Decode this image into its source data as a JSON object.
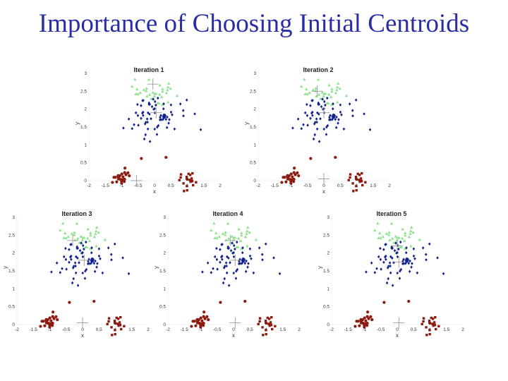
{
  "slide": {
    "title": "Importance of Choosing Initial Centroids"
  },
  "colors": {
    "title": "#2a2ea6",
    "cluster_green": "#8fe38f",
    "cluster_blue": "#13238c",
    "cluster_red": "#8b1a10",
    "centroid": "#999999"
  },
  "chart_data": [
    {
      "type": "scatter",
      "title": "Iteration 1",
      "xlabel": "x",
      "ylabel": "y",
      "xlim": [
        -2,
        2
      ],
      "ylim": [
        0,
        3
      ],
      "xticks": [
        "-2",
        "-1.5",
        "-1",
        "-0.5",
        "0",
        "0.5",
        "1",
        "1.5",
        "2"
      ],
      "yticks": [
        "0",
        "0.5",
        "1",
        "1.5",
        "2",
        "2.5",
        "3"
      ],
      "centroids": [
        [
          -0.05,
          2.7
        ],
        [
          0.05,
          1.9
        ],
        [
          -0.55,
          0.0
        ]
      ]
    },
    {
      "type": "scatter",
      "title": "Iteration 2",
      "xlabel": "x",
      "ylabel": "y",
      "xlim": [
        -2,
        2
      ],
      "ylim": [
        0,
        3
      ],
      "xticks": [
        "-2",
        "-1.5",
        "-1",
        "-0.5",
        "0",
        "0.5",
        "1",
        "1.5",
        "2"
      ],
      "yticks": [
        "0",
        "0.5",
        "1",
        "1.5",
        "2",
        "2.5",
        "3"
      ],
      "centroids": [
        [
          -0.2,
          2.5
        ],
        [
          0.0,
          1.9
        ],
        [
          0.0,
          0.05
        ]
      ]
    },
    {
      "type": "scatter",
      "title": "Iteration 3",
      "xlabel": "x",
      "ylabel": "y",
      "xlim": [
        -2,
        2
      ],
      "ylim": [
        0,
        3
      ],
      "xticks": [
        "-2",
        "-1.5",
        "-1",
        "-0.5",
        "0",
        "0.5",
        "1",
        "1.5",
        "2"
      ],
      "yticks": [
        "0",
        "0.5",
        "1",
        "1.5",
        "2",
        "2.5",
        "3"
      ],
      "centroids": [
        [
          -0.3,
          2.35
        ],
        [
          0.05,
          1.8
        ],
        [
          0.0,
          0.05
        ]
      ]
    },
    {
      "type": "scatter",
      "title": "Iteration 4",
      "xlabel": "x",
      "ylabel": "y",
      "xlim": [
        -2,
        2
      ],
      "ylim": [
        0,
        3
      ],
      "xticks": [
        "-2",
        "-1.5",
        "-1",
        "-0.5",
        "0",
        "0.5",
        "1",
        "1.5",
        "2"
      ],
      "yticks": [
        "0",
        "0.5",
        "1",
        "1.5",
        "2",
        "2.5",
        "3"
      ],
      "centroids": [
        [
          -0.1,
          2.35
        ],
        [
          0.05,
          1.8
        ],
        [
          0.05,
          0.05
        ]
      ]
    },
    {
      "type": "scatter",
      "title": "Iteration 5",
      "xlabel": "x",
      "ylabel": "y",
      "xlim": [
        -2,
        2
      ],
      "ylim": [
        0,
        3
      ],
      "xticks": [
        "-2",
        "-1.5",
        "-1",
        "-0.5",
        "0",
        "0.5",
        "1",
        "1.5",
        "2"
      ],
      "yticks": [
        "0",
        "0.5",
        "1",
        "1.5",
        "2",
        "2.5",
        "3"
      ],
      "centroids": [
        [
          0.0,
          2.2
        ],
        [
          0.05,
          1.75
        ],
        [
          0.05,
          0.05
        ]
      ]
    }
  ]
}
